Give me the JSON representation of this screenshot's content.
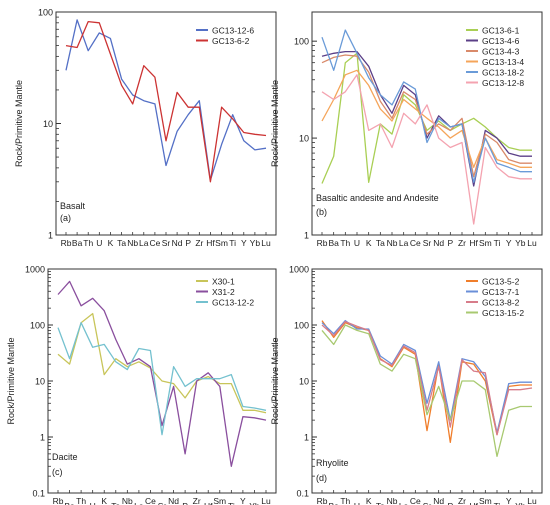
{
  "figure": {
    "ylabel": "Rock/Primitive Mantle",
    "categories": [
      "Rb",
      "Ba",
      "Th",
      "U",
      "K",
      "Ta",
      "Nb",
      "La",
      "Ce",
      "Sr",
      "Nd",
      "P",
      "Zr",
      "Hf",
      "Sm",
      "Ti",
      "Y",
      "Yb",
      "Lu"
    ]
  },
  "chart_data": [
    {
      "id": "a",
      "type": "line",
      "log_y": true,
      "ylim": [
        1,
        100
      ],
      "yticks": [
        1,
        10,
        100
      ],
      "xlabel": "",
      "ylabel": "Rock/Primitive Mantle",
      "rock_label": "Basalt",
      "panel_label": "(a)",
      "legend_position": "top-right",
      "categories": [
        "Rb",
        "Ba",
        "Th",
        "U",
        "K",
        "Ta",
        "Nb",
        "La",
        "Ce",
        "Sr",
        "Nd",
        "P",
        "Zr",
        "Hf",
        "Sm",
        "Ti",
        "Y",
        "Yb",
        "Lu"
      ],
      "series": [
        {
          "name": "GC13-12-6",
          "color": "#5470c6",
          "values": [
            30,
            85,
            45,
            65,
            58,
            25,
            18,
            16,
            15,
            4.2,
            8.5,
            12,
            16,
            3.1,
            6.5,
            12,
            7,
            5.8,
            6
          ]
        },
        {
          "name": "GC13-6-2",
          "color": "#cc3333",
          "values": [
            50,
            48,
            82,
            80,
            42,
            22,
            15,
            33,
            26,
            7,
            19,
            14,
            14,
            3,
            14,
            11,
            8.3,
            8,
            7.8
          ]
        }
      ]
    },
    {
      "id": "b",
      "type": "line",
      "log_y": true,
      "ylim": [
        1,
        200
      ],
      "yticks": [
        1,
        10,
        100
      ],
      "xlabel": "",
      "ylabel": "Rock/Primitive Mantle",
      "rock_label": "Basaltic andesite and Andesite",
      "panel_label": "(b)",
      "legend_position": "top-right",
      "categories": [
        "Rb",
        "Ba",
        "Th",
        "U",
        "K",
        "Ta",
        "Nb",
        "La",
        "Ce",
        "Sr",
        "Nd",
        "P",
        "Zr",
        "Hf",
        "Sm",
        "Ti",
        "Y",
        "Yb",
        "Lu"
      ],
      "series": [
        {
          "name": "GC13-6-1",
          "color": "#a9cf54",
          "values": [
            3.4,
            6.5,
            60,
            75,
            3.5,
            14,
            11,
            28,
            22,
            12,
            15,
            12,
            14,
            16,
            13,
            10,
            8,
            7.5,
            7.5
          ]
        },
        {
          "name": "GC13-4-6",
          "color": "#5b3f87",
          "values": [
            70,
            75,
            78,
            78,
            55,
            28,
            18,
            35,
            28,
            10,
            17,
            13,
            14,
            3.2,
            12,
            10,
            7,
            6.5,
            6.5
          ]
        },
        {
          "name": "GC13-4-3",
          "color": "#d98a6a",
          "values": [
            60,
            68,
            72,
            70,
            48,
            24,
            16,
            30,
            25,
            11,
            14,
            12,
            16,
            4,
            11,
            9,
            6,
            5.5,
            5.5
          ]
        },
        {
          "name": "GC13-13-4",
          "color": "#f5a55a",
          "values": [
            15,
            25,
            45,
            50,
            35,
            20,
            15,
            25,
            20,
            16,
            13,
            10,
            12,
            5,
            10,
            6,
            5.5,
            5,
            5
          ]
        },
        {
          "name": "GC13-18-2",
          "color": "#6a9bd8",
          "values": [
            110,
            50,
            130,
            75,
            42,
            28,
            22,
            38,
            32,
            9,
            16,
            13,
            14,
            3.5,
            10,
            5.5,
            5,
            4.5,
            4.5
          ]
        },
        {
          "name": "GC13-12-8",
          "color": "#f4a3b0",
          "values": [
            30,
            25,
            30,
            45,
            12,
            14,
            8,
            18,
            14,
            22,
            10,
            8,
            9,
            1.3,
            8,
            5,
            4,
            3.8,
            3.8
          ]
        }
      ]
    },
    {
      "id": "c",
      "type": "line",
      "log_y": true,
      "ylim": [
        0.1,
        1000
      ],
      "yticks": [
        0.1,
        1,
        10,
        100,
        1000
      ],
      "xlabel": "",
      "ylabel": "Rock/Primitive Mantle",
      "rock_label": "Dacite",
      "panel_label": "(c)",
      "legend_position": "top-right",
      "categories": [
        "Rb",
        "Ba",
        "Th",
        "U",
        "K",
        "Ta",
        "Nb",
        "La",
        "Ce",
        "Sr",
        "Nd",
        "P",
        "Zr",
        "Hf",
        "Sm",
        "Ti",
        "Y",
        "Yb",
        "Lu"
      ],
      "series": [
        {
          "name": "X30-1",
          "color": "#c8c55a",
          "values": [
            30,
            20,
            110,
            160,
            13,
            25,
            18,
            22,
            17,
            10,
            9,
            5,
            10,
            12,
            9,
            9,
            3,
            3,
            2.7
          ]
        },
        {
          "name": "X31-2",
          "color": "#8a4f9e",
          "values": [
            350,
            600,
            220,
            300,
            180,
            55,
            20,
            25,
            18,
            1.6,
            8,
            0.5,
            10,
            14,
            8,
            0.3,
            2.3,
            2.2,
            2
          ]
        },
        {
          "name": "GC13-12-2",
          "color": "#74c1cf",
          "values": [
            90,
            25,
            110,
            40,
            45,
            22,
            16,
            38,
            35,
            1.1,
            18,
            8,
            11,
            11,
            11,
            13,
            3.5,
            3.3,
            3
          ]
        }
      ]
    },
    {
      "id": "d",
      "type": "line",
      "log_y": true,
      "ylim": [
        0.1,
        1000
      ],
      "yticks": [
        0.1,
        1,
        10,
        100,
        1000
      ],
      "xlabel": "",
      "ylabel": "Rock/Primitive Mantle",
      "rock_label": "Rhyolite",
      "panel_label": "(d)",
      "legend_position": "top-right",
      "categories": [
        "Rb",
        "Ba",
        "Th",
        "U",
        "K",
        "Ta",
        "Nb",
        "La",
        "Ce",
        "Sr",
        "Nd",
        "P",
        "Zr",
        "Hf",
        "Sm",
        "Ti",
        "Y",
        "Yb",
        "Lu"
      ],
      "series": [
        {
          "name": "GC13-5-2",
          "color": "#f07e2b",
          "values": [
            120,
            60,
            110,
            90,
            80,
            25,
            18,
            40,
            30,
            1.3,
            20,
            0.8,
            22,
            20,
            10,
            1.1,
            8,
            8.5,
            8.5
          ]
        },
        {
          "name": "GC13-7-1",
          "color": "#6a8fd8",
          "values": [
            110,
            70,
            120,
            85,
            85,
            28,
            20,
            45,
            35,
            4,
            22,
            2,
            25,
            22,
            12,
            1.2,
            9,
            9.5,
            9.5
          ]
        },
        {
          "name": "GC13-8-2",
          "color": "#d77c8a",
          "values": [
            100,
            65,
            115,
            95,
            80,
            24,
            19,
            42,
            32,
            3,
            18,
            1.5,
            24,
            15,
            14,
            1.1,
            7,
            7,
            7.5
          ]
        },
        {
          "name": "GC13-15-2",
          "color": "#a8c970",
          "values": [
            80,
            45,
            100,
            80,
            70,
            20,
            15,
            30,
            25,
            2.5,
            8,
            2,
            10,
            10,
            7,
            0.45,
            3,
            3.5,
            3.5
          ]
        }
      ]
    }
  ]
}
